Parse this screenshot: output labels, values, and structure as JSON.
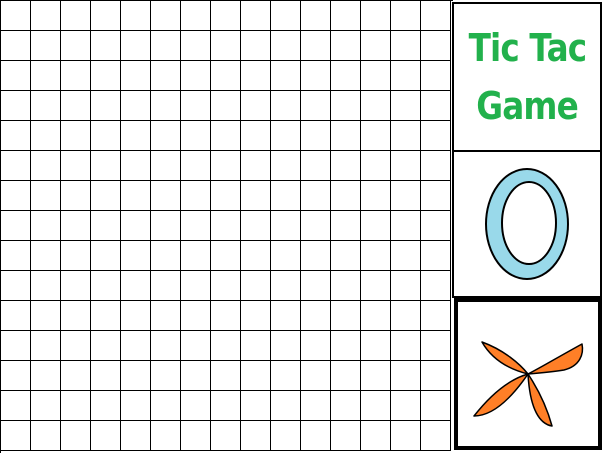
{
  "title": {
    "line1": "Tic Tac",
    "line2": "Game",
    "color": "#22b14c"
  },
  "board": {
    "rows": 15,
    "cols": 15,
    "line_color": "#000000",
    "cell_color": "#ffffff"
  },
  "o_panel": {
    "icon": "o-piece-icon",
    "fill": "#99d9ea",
    "outline": "#000000"
  },
  "x_panel": {
    "icon": "x-piece-icon",
    "fill": "#ff7f27",
    "outline": "#000000"
  }
}
